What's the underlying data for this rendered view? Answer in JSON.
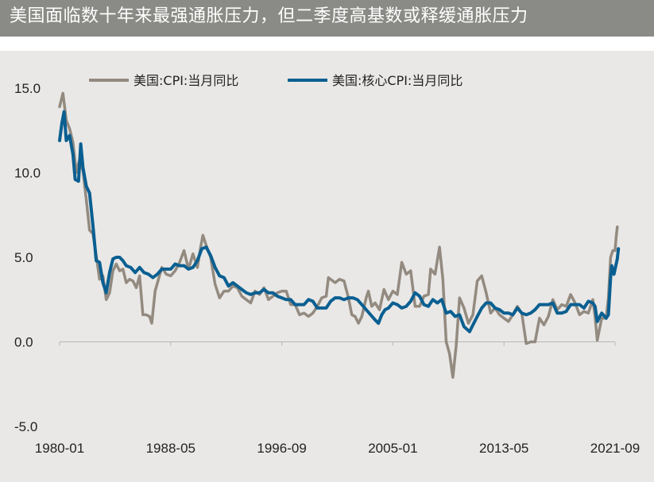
{
  "header": {
    "title": "美国面临数十年来最强通胀压力，但二季度高基数或释缓通胀压力"
  },
  "colors": {
    "title_bar": "#8a8a86",
    "plot_background": "#e9e8e6",
    "cpi_series": "#938a80",
    "core_cpi_series": "#0a5f91"
  },
  "chart_data": {
    "type": "line",
    "xlabel": "",
    "ylabel": "",
    "x_tick_labels": [
      "1980-01",
      "1988-05",
      "1996-09",
      "2005-01",
      "2013-05",
      "2021-09"
    ],
    "y_tick_labels": [
      "15.0",
      "10.0",
      "5.0",
      "0.0",
      "-5.0"
    ],
    "y_ticks": [
      15,
      10,
      5,
      0,
      -5
    ],
    "ylim": [
      -5,
      15
    ],
    "xlim": [
      "1980-01",
      "2021-09"
    ],
    "legend_position": "top",
    "grid": false,
    "series": [
      {
        "name": "美国:CPI:当月同比",
        "color": "#938a80",
        "points": [
          [
            "1980-01",
            13.9
          ],
          [
            "1980-04",
            14.7
          ],
          [
            "1980-07",
            13.1
          ],
          [
            "1980-10",
            12.6
          ],
          [
            "1981-01",
            11.8
          ],
          [
            "1981-04",
            10.0
          ],
          [
            "1981-07",
            10.8
          ],
          [
            "1981-10",
            10.1
          ],
          [
            "1982-01",
            8.4
          ],
          [
            "1982-04",
            6.6
          ],
          [
            "1982-07",
            6.4
          ],
          [
            "1982-10",
            5.1
          ],
          [
            "1983-01",
            3.7
          ],
          [
            "1983-04",
            3.9
          ],
          [
            "1983-07",
            2.5
          ],
          [
            "1983-10",
            2.9
          ],
          [
            "1984-01",
            4.2
          ],
          [
            "1984-04",
            4.6
          ],
          [
            "1984-07",
            4.2
          ],
          [
            "1984-10",
            4.3
          ],
          [
            "1985-01",
            3.5
          ],
          [
            "1985-04",
            3.7
          ],
          [
            "1985-07",
            3.6
          ],
          [
            "1985-10",
            3.2
          ],
          [
            "1986-01",
            3.9
          ],
          [
            "1986-04",
            1.6
          ],
          [
            "1986-07",
            1.6
          ],
          [
            "1986-10",
            1.5
          ],
          [
            "1986-12",
            1.1
          ],
          [
            "1987-03",
            3.0
          ],
          [
            "1987-06",
            3.7
          ],
          [
            "1987-09",
            4.4
          ],
          [
            "1988-01",
            4.0
          ],
          [
            "1988-05",
            3.9
          ],
          [
            "1988-09",
            4.2
          ],
          [
            "1989-01",
            4.7
          ],
          [
            "1989-05",
            5.4
          ],
          [
            "1989-09",
            4.3
          ],
          [
            "1990-01",
            5.2
          ],
          [
            "1990-05",
            4.4
          ],
          [
            "1990-08",
            5.6
          ],
          [
            "1990-10",
            6.3
          ],
          [
            "1991-01",
            5.7
          ],
          [
            "1991-05",
            5.0
          ],
          [
            "1991-09",
            3.4
          ],
          [
            "1992-01",
            2.6
          ],
          [
            "1992-05",
            3.0
          ],
          [
            "1992-09",
            3.0
          ],
          [
            "1993-01",
            3.3
          ],
          [
            "1993-05",
            3.2
          ],
          [
            "1993-09",
            2.7
          ],
          [
            "1994-01",
            2.5
          ],
          [
            "1994-05",
            2.3
          ],
          [
            "1994-09",
            3.0
          ],
          [
            "1995-01",
            2.8
          ],
          [
            "1995-05",
            3.2
          ],
          [
            "1995-09",
            2.5
          ],
          [
            "1996-01",
            2.7
          ],
          [
            "1996-05",
            2.9
          ],
          [
            "1996-09",
            3.0
          ],
          [
            "1997-01",
            3.0
          ],
          [
            "1997-05",
            2.2
          ],
          [
            "1997-09",
            2.2
          ],
          [
            "1998-01",
            1.6
          ],
          [
            "1998-05",
            1.7
          ],
          [
            "1998-09",
            1.5
          ],
          [
            "1999-01",
            1.7
          ],
          [
            "1999-05",
            2.1
          ],
          [
            "1999-09",
            2.6
          ],
          [
            "2000-01",
            2.7
          ],
          [
            "2000-03",
            3.8
          ],
          [
            "2000-09",
            3.5
          ],
          [
            "2001-01",
            3.7
          ],
          [
            "2001-05",
            3.6
          ],
          [
            "2001-09",
            2.6
          ],
          [
            "2001-12",
            1.6
          ],
          [
            "2002-03",
            1.5
          ],
          [
            "2002-06",
            1.1
          ],
          [
            "2002-09",
            1.5
          ],
          [
            "2003-01",
            2.6
          ],
          [
            "2003-03",
            3.0
          ],
          [
            "2003-06",
            2.1
          ],
          [
            "2003-09",
            2.3
          ],
          [
            "2004-01",
            1.9
          ],
          [
            "2004-05",
            3.1
          ],
          [
            "2004-09",
            2.5
          ],
          [
            "2005-01",
            3.0
          ],
          [
            "2005-05",
            2.8
          ],
          [
            "2005-09",
            4.7
          ],
          [
            "2006-01",
            4.0
          ],
          [
            "2006-05",
            4.2
          ],
          [
            "2006-09",
            2.1
          ],
          [
            "2007-01",
            2.1
          ],
          [
            "2007-05",
            2.7
          ],
          [
            "2007-09",
            2.8
          ],
          [
            "2007-11",
            4.3
          ],
          [
            "2008-03",
            4.0
          ],
          [
            "2008-07",
            5.6
          ],
          [
            "2008-10",
            3.7
          ],
          [
            "2009-01",
            0.0
          ],
          [
            "2009-04",
            -0.7
          ],
          [
            "2009-07",
            -2.1
          ],
          [
            "2009-10",
            -0.2
          ],
          [
            "2010-01",
            2.6
          ],
          [
            "2010-05",
            2.0
          ],
          [
            "2010-09",
            1.1
          ],
          [
            "2011-01",
            1.6
          ],
          [
            "2011-05",
            3.6
          ],
          [
            "2011-09",
            3.9
          ],
          [
            "2012-01",
            2.9
          ],
          [
            "2012-05",
            1.7
          ],
          [
            "2012-09",
            2.0
          ],
          [
            "2013-01",
            1.6
          ],
          [
            "2013-05",
            1.4
          ],
          [
            "2013-09",
            1.2
          ],
          [
            "2014-01",
            1.6
          ],
          [
            "2014-05",
            2.1
          ],
          [
            "2014-09",
            1.7
          ],
          [
            "2015-01",
            -0.1
          ],
          [
            "2015-05",
            0.0
          ],
          [
            "2015-09",
            0.0
          ],
          [
            "2016-01",
            1.4
          ],
          [
            "2016-05",
            1.0
          ],
          [
            "2016-09",
            1.5
          ],
          [
            "2017-01",
            2.5
          ],
          [
            "2017-05",
            1.9
          ],
          [
            "2017-09",
            2.2
          ],
          [
            "2018-01",
            2.1
          ],
          [
            "2018-05",
            2.8
          ],
          [
            "2018-09",
            2.3
          ],
          [
            "2019-01",
            1.6
          ],
          [
            "2019-05",
            1.8
          ],
          [
            "2019-09",
            1.7
          ],
          [
            "2020-01",
            2.5
          ],
          [
            "2020-03",
            1.5
          ],
          [
            "2020-05",
            0.1
          ],
          [
            "2020-09",
            1.4
          ],
          [
            "2021-01",
            1.4
          ],
          [
            "2021-03",
            2.6
          ],
          [
            "2021-05",
            5.0
          ],
          [
            "2021-07",
            5.4
          ],
          [
            "2021-09",
            5.4
          ],
          [
            "2021-10",
            6.2
          ],
          [
            "2021-11",
            6.8
          ]
        ]
      },
      {
        "name": "美国:核心CPI:当月同比",
        "color": "#0a5f91",
        "points": [
          [
            "1980-01",
            11.9
          ],
          [
            "1980-03",
            12.9
          ],
          [
            "1980-05",
            13.6
          ],
          [
            "1980-07",
            11.9
          ],
          [
            "1980-10",
            12.2
          ],
          [
            "1981-01",
            11.1
          ],
          [
            "1981-03",
            9.6
          ],
          [
            "1981-06",
            9.5
          ],
          [
            "1981-08",
            11.7
          ],
          [
            "1981-10",
            10.3
          ],
          [
            "1982-01",
            9.2
          ],
          [
            "1982-04",
            8.8
          ],
          [
            "1982-07",
            6.9
          ],
          [
            "1982-10",
            4.8
          ],
          [
            "1983-01",
            4.7
          ],
          [
            "1983-04",
            3.5
          ],
          [
            "1983-07",
            2.9
          ],
          [
            "1983-10",
            4.1
          ],
          [
            "1984-01",
            4.9
          ],
          [
            "1984-04",
            5.0
          ],
          [
            "1984-07",
            5.0
          ],
          [
            "1984-10",
            4.8
          ],
          [
            "1985-01",
            4.5
          ],
          [
            "1985-05",
            4.4
          ],
          [
            "1985-09",
            4.1
          ],
          [
            "1986-01",
            4.4
          ],
          [
            "1986-05",
            4.1
          ],
          [
            "1986-09",
            4.0
          ],
          [
            "1987-01",
            3.8
          ],
          [
            "1987-05",
            4.0
          ],
          [
            "1987-09",
            4.3
          ],
          [
            "1988-01",
            4.3
          ],
          [
            "1988-05",
            4.3
          ],
          [
            "1988-09",
            4.6
          ],
          [
            "1989-01",
            4.5
          ],
          [
            "1989-05",
            4.5
          ],
          [
            "1989-09",
            4.3
          ],
          [
            "1990-01",
            4.4
          ],
          [
            "1990-05",
            4.8
          ],
          [
            "1990-09",
            5.5
          ],
          [
            "1991-01",
            5.6
          ],
          [
            "1991-05",
            5.1
          ],
          [
            "1991-09",
            4.4
          ],
          [
            "1992-01",
            3.9
          ],
          [
            "1992-05",
            3.8
          ],
          [
            "1992-09",
            3.3
          ],
          [
            "1993-01",
            3.5
          ],
          [
            "1993-05",
            3.3
          ],
          [
            "1993-09",
            3.1
          ],
          [
            "1994-01",
            2.9
          ],
          [
            "1994-05",
            2.8
          ],
          [
            "1994-09",
            2.9
          ],
          [
            "1995-01",
            2.9
          ],
          [
            "1995-05",
            3.1
          ],
          [
            "1995-09",
            2.9
          ],
          [
            "1996-01",
            2.9
          ],
          [
            "1996-05",
            2.7
          ],
          [
            "1996-09",
            2.6
          ],
          [
            "1997-01",
            2.5
          ],
          [
            "1997-05",
            2.5
          ],
          [
            "1997-09",
            2.2
          ],
          [
            "1998-01",
            2.2
          ],
          [
            "1998-05",
            2.2
          ],
          [
            "1998-09",
            2.5
          ],
          [
            "1999-01",
            2.4
          ],
          [
            "1999-05",
            2.0
          ],
          [
            "1999-09",
            2.0
          ],
          [
            "2000-01",
            2.0
          ],
          [
            "2000-05",
            2.4
          ],
          [
            "2000-09",
            2.6
          ],
          [
            "2001-01",
            2.6
          ],
          [
            "2001-05",
            2.5
          ],
          [
            "2001-09",
            2.6
          ],
          [
            "2002-01",
            2.6
          ],
          [
            "2002-05",
            2.5
          ],
          [
            "2002-09",
            2.2
          ],
          [
            "2003-01",
            1.9
          ],
          [
            "2003-05",
            1.6
          ],
          [
            "2003-09",
            1.3
          ],
          [
            "2003-12",
            1.1
          ],
          [
            "2004-03",
            1.6
          ],
          [
            "2004-06",
            1.9
          ],
          [
            "2004-09",
            2.0
          ],
          [
            "2005-01",
            2.3
          ],
          [
            "2005-05",
            2.2
          ],
          [
            "2005-09",
            2.0
          ],
          [
            "2006-01",
            2.1
          ],
          [
            "2006-05",
            2.4
          ],
          [
            "2006-09",
            2.9
          ],
          [
            "2007-01",
            2.7
          ],
          [
            "2007-05",
            2.2
          ],
          [
            "2007-09",
            2.1
          ],
          [
            "2008-01",
            2.5
          ],
          [
            "2008-05",
            2.3
          ],
          [
            "2008-09",
            2.5
          ],
          [
            "2009-01",
            1.7
          ],
          [
            "2009-05",
            1.8
          ],
          [
            "2009-09",
            1.5
          ],
          [
            "2010-01",
            1.6
          ],
          [
            "2010-05",
            0.9
          ],
          [
            "2010-10",
            0.6
          ],
          [
            "2011-01",
            1.0
          ],
          [
            "2011-05",
            1.5
          ],
          [
            "2011-09",
            2.0
          ],
          [
            "2012-01",
            2.3
          ],
          [
            "2012-05",
            2.3
          ],
          [
            "2012-09",
            2.0
          ],
          [
            "2013-01",
            1.9
          ],
          [
            "2013-05",
            1.7
          ],
          [
            "2013-09",
            1.7
          ],
          [
            "2014-01",
            1.6
          ],
          [
            "2014-05",
            2.0
          ],
          [
            "2014-09",
            1.7
          ],
          [
            "2015-01",
            1.6
          ],
          [
            "2015-05",
            1.7
          ],
          [
            "2015-09",
            1.9
          ],
          [
            "2016-01",
            2.2
          ],
          [
            "2016-05",
            2.2
          ],
          [
            "2016-09",
            2.2
          ],
          [
            "2017-01",
            2.3
          ],
          [
            "2017-05",
            1.7
          ],
          [
            "2017-09",
            1.7
          ],
          [
            "2018-01",
            1.8
          ],
          [
            "2018-05",
            2.2
          ],
          [
            "2018-09",
            2.2
          ],
          [
            "2019-01",
            2.2
          ],
          [
            "2019-05",
            2.0
          ],
          [
            "2019-09",
            2.4
          ],
          [
            "2020-01",
            2.3
          ],
          [
            "2020-03",
            2.1
          ],
          [
            "2020-05",
            1.2
          ],
          [
            "2020-09",
            1.7
          ],
          [
            "2021-01",
            1.4
          ],
          [
            "2021-03",
            1.6
          ],
          [
            "2021-05",
            3.8
          ],
          [
            "2021-06",
            4.5
          ],
          [
            "2021-08",
            4.0
          ],
          [
            "2021-10",
            4.6
          ],
          [
            "2021-11",
            4.9
          ],
          [
            "2021-12",
            5.5
          ]
        ]
      }
    ]
  }
}
